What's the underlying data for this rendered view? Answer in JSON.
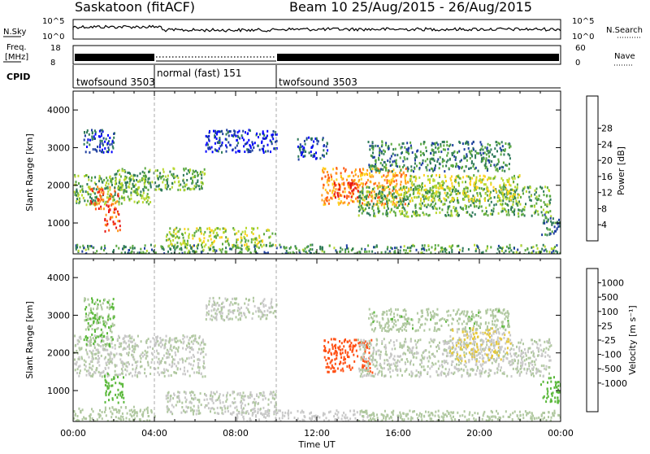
{
  "header": {
    "title": "Saskatoon (fitACF)",
    "beam_info": "Beam 10 25/Aug/2015 - 26/Aug/2015"
  },
  "noise_panel": {
    "label": "N.Sky",
    "left_ticks": [
      "10^5",
      "10^0"
    ],
    "right_label": "N.Search",
    "right_ticks": [
      "10^5",
      "10^0"
    ]
  },
  "freq_panel": {
    "label_line1": "Freq.",
    "label_line2": "[MHz]",
    "left_ticks": [
      "18",
      "8"
    ],
    "right_label": "Nave",
    "right_ticks": [
      "60",
      "0"
    ]
  },
  "cpid_panel": {
    "label": "CPID",
    "segments": [
      {
        "name": "twofsound 3503",
        "start_h": 0,
        "end_h": 4
      },
      {
        "name": "normal (fast) 151",
        "start_h": 4,
        "end_h": 10
      },
      {
        "name": "twofsound 3503",
        "start_h": 10,
        "end_h": 24
      }
    ]
  },
  "power_panel": {
    "ylabel": "Slant Range [km]",
    "yticks": [
      "1000",
      "2000",
      "3000",
      "4000"
    ],
    "colorbar_label": "Power [dB]",
    "colorbar_ticks": [
      "4",
      "8",
      "12",
      "16",
      "20",
      "24",
      "28"
    ],
    "colors": [
      "#0000ff",
      "#1e3fa0",
      "#2f7a5a",
      "#5aa840",
      "#b8d830",
      "#ffd21e",
      "#ff9a1e",
      "#ff5a14",
      "#e61414"
    ]
  },
  "velocity_panel": {
    "ylabel": "Slant Range [km]",
    "yticks": [
      "1000",
      "2000",
      "3000",
      "4000"
    ],
    "colorbar_label": "Velocity [m s⁻¹]",
    "colorbar_ticks": [
      "1000",
      "500",
      "100",
      "25",
      "-25",
      "-100",
      "-500",
      "-1000"
    ],
    "colors": [
      "#1e3fc8",
      "#2f6a8a",
      "#2f8a5a",
      "#5ab83a",
      "#b0c8a0",
      "#c8c8c8",
      "#e6c83a",
      "#ff9a1e",
      "#ff5014",
      "#e61414"
    ]
  },
  "x_axis": {
    "ticks": [
      "00:00",
      "04:00",
      "08:00",
      "12:00",
      "16:00",
      "20:00",
      "00:00"
    ],
    "label": "Time UT"
  },
  "chart_data": [
    {
      "type": "heatmap",
      "title": "Saskatoon (fitACF) Beam 10 25/Aug/2015 - 26/Aug/2015",
      "xlabel": "Time UT",
      "ylabel": "Slant Range [km]",
      "colorbar": "Power [dB]",
      "xlim_hours": [
        0,
        24
      ],
      "ylim": [
        180,
        4500
      ],
      "clim": [
        3,
        30
      ],
      "regions": [
        {
          "t0": 0.0,
          "t1": 3.8,
          "r0": 1500,
          "r1": 2300,
          "value": 14
        },
        {
          "t0": 0.8,
          "t1": 2.2,
          "r0": 1400,
          "r1": 2000,
          "value": 25
        },
        {
          "t0": 1.5,
          "t1": 2.3,
          "r0": 800,
          "r1": 1400,
          "value": 26
        },
        {
          "t0": 2.0,
          "t1": 6.5,
          "r0": 1900,
          "r1": 2500,
          "value": 13
        },
        {
          "t0": 0.5,
          "t1": 2.0,
          "r0": 2900,
          "r1": 3500,
          "value": 8
        },
        {
          "t0": 6.5,
          "t1": 10.0,
          "r0": 2900,
          "r1": 3500,
          "value": 7
        },
        {
          "t0": 4.5,
          "t1": 10.0,
          "r0": 400,
          "r1": 900,
          "value": 16
        },
        {
          "t0": 0.0,
          "t1": 24.0,
          "r0": 200,
          "r1": 450,
          "value": 12
        },
        {
          "t0": 12.2,
          "t1": 16.5,
          "r0": 1500,
          "r1": 2500,
          "value": 22
        },
        {
          "t0": 12.8,
          "t1": 14.0,
          "r0": 1700,
          "r1": 2100,
          "value": 28
        },
        {
          "t0": 14.0,
          "t1": 23.5,
          "r0": 1200,
          "r1": 2000,
          "value": 13
        },
        {
          "t0": 16.5,
          "t1": 22.0,
          "r0": 1600,
          "r1": 2300,
          "value": 17
        },
        {
          "t0": 14.5,
          "t1": 21.5,
          "r0": 2400,
          "r1": 3200,
          "value": 11
        },
        {
          "t0": 11.0,
          "t1": 12.5,
          "r0": 2700,
          "r1": 3300,
          "value": 8
        },
        {
          "t0": 23.0,
          "t1": 24.0,
          "r0": 700,
          "r1": 1300,
          "value": 10
        }
      ]
    },
    {
      "type": "heatmap",
      "xlabel": "Time UT",
      "ylabel": "Slant Range [km]",
      "colorbar": "Velocity [m s⁻¹]",
      "xlim_hours": [
        0,
        24
      ],
      "ylim": [
        180,
        4500
      ],
      "clim": [
        -1000,
        1000
      ],
      "regions": [
        {
          "t0": 0.0,
          "t1": 6.5,
          "r0": 1400,
          "r1": 2500,
          "value": 0
        },
        {
          "t0": 1.5,
          "t1": 2.5,
          "r0": 700,
          "r1": 1500,
          "value": 300
        },
        {
          "t0": 0.5,
          "t1": 2.0,
          "r0": 2200,
          "r1": 3500,
          "value": 200
        },
        {
          "t0": 0.0,
          "t1": 4.0,
          "r0": 180,
          "r1": 600,
          "value": 60
        },
        {
          "t0": 4.5,
          "t1": 10.0,
          "r0": 400,
          "r1": 1000,
          "value": 0
        },
        {
          "t0": 6.5,
          "t1": 10.0,
          "r0": 2900,
          "r1": 3500,
          "value": 0
        },
        {
          "t0": 8.0,
          "t1": 14.5,
          "r0": 180,
          "r1": 500,
          "value": -60
        },
        {
          "t0": 12.3,
          "t1": 14.7,
          "r0": 1500,
          "r1": 2400,
          "value": -700
        },
        {
          "t0": 14.0,
          "t1": 23.5,
          "r0": 1400,
          "r1": 2400,
          "value": 0
        },
        {
          "t0": 18.5,
          "t1": 21.5,
          "r0": 1800,
          "r1": 2700,
          "value": -200
        },
        {
          "t0": 14.5,
          "t1": 21.5,
          "r0": 2600,
          "r1": 3200,
          "value": 150
        },
        {
          "t0": 14.0,
          "t1": 24.0,
          "r0": 180,
          "r1": 500,
          "value": 60
        },
        {
          "t0": 23.0,
          "t1": 24.0,
          "r0": 700,
          "r1": 1400,
          "value": 300
        }
      ]
    }
  ]
}
